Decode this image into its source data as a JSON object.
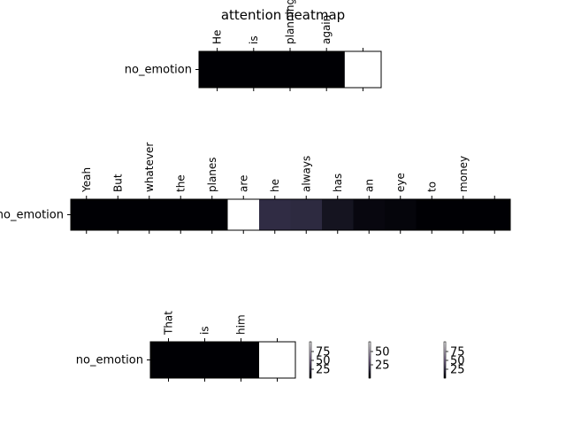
{
  "title": "attention heatmap",
  "chart_data": [
    {
      "type": "heatmap",
      "row_labels": [
        "no_emotion"
      ],
      "x_labels": [
        "He",
        "is",
        "planning",
        "again",
        ""
      ],
      "values": [
        [
          0,
          0,
          0,
          0,
          1
        ]
      ]
    },
    {
      "type": "heatmap",
      "row_labels": [
        "no_emotion"
      ],
      "x_labels": [
        "Yeah",
        "But",
        "whatever",
        "the",
        "planes",
        "are",
        "he",
        "always",
        "has",
        "an",
        "eye",
        "to",
        "money",
        ""
      ],
      "values": [
        [
          0,
          0,
          0,
          0,
          0,
          1,
          0.18,
          0.17,
          0.08,
          0.03,
          0.02,
          0,
          0,
          0
        ]
      ]
    },
    {
      "type": "heatmap",
      "row_labels": [
        "no_emotion"
      ],
      "x_labels": [
        "That",
        "is",
        "him",
        ""
      ],
      "values": [
        [
          0,
          0,
          0,
          1
        ]
      ]
    }
  ],
  "colorbars": [
    {
      "ticks": [
        "75",
        "50",
        "25"
      ]
    },
    {
      "ticks": [
        "50",
        "25"
      ]
    },
    {
      "ticks": [
        "75",
        "50",
        "25"
      ]
    }
  ]
}
